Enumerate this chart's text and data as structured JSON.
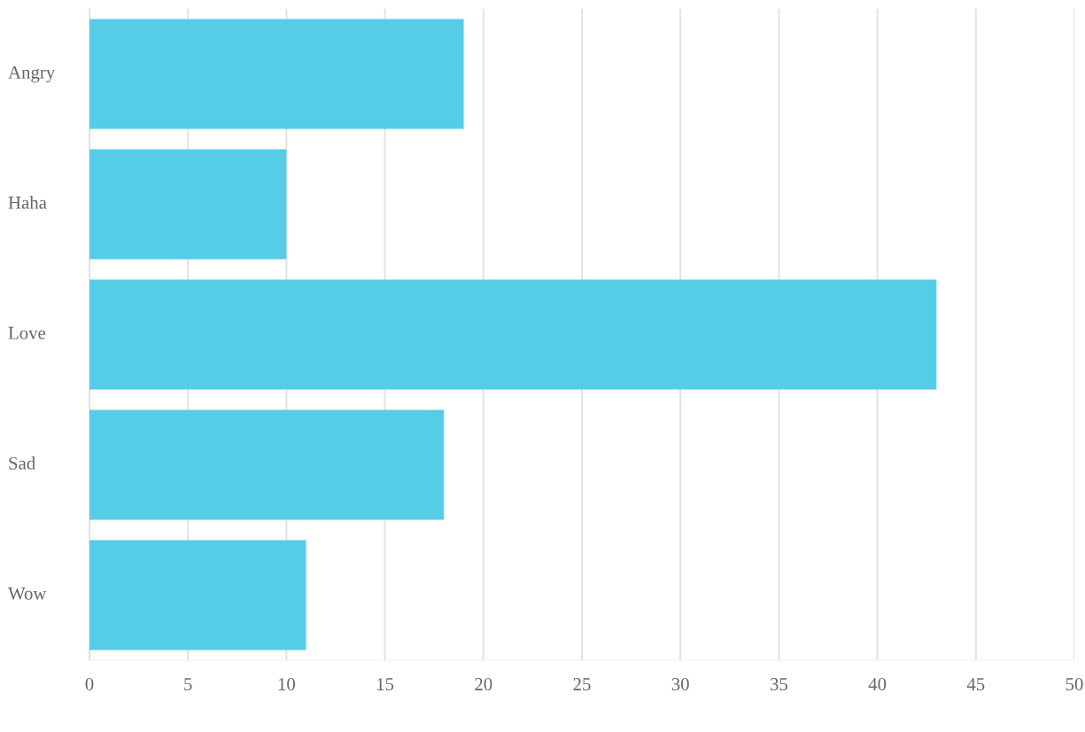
{
  "chart_data": {
    "type": "bar",
    "orientation": "horizontal",
    "categories": [
      "Angry",
      "Haha",
      "Love",
      "Sad",
      "Wow"
    ],
    "values": [
      19,
      10,
      43,
      18,
      11
    ],
    "color": "#56cde6",
    "xlim": [
      0,
      50
    ],
    "xticks": [
      0,
      5,
      10,
      15,
      20,
      25,
      30,
      35,
      40,
      45,
      50
    ],
    "grid": "x",
    "legend": false
  }
}
